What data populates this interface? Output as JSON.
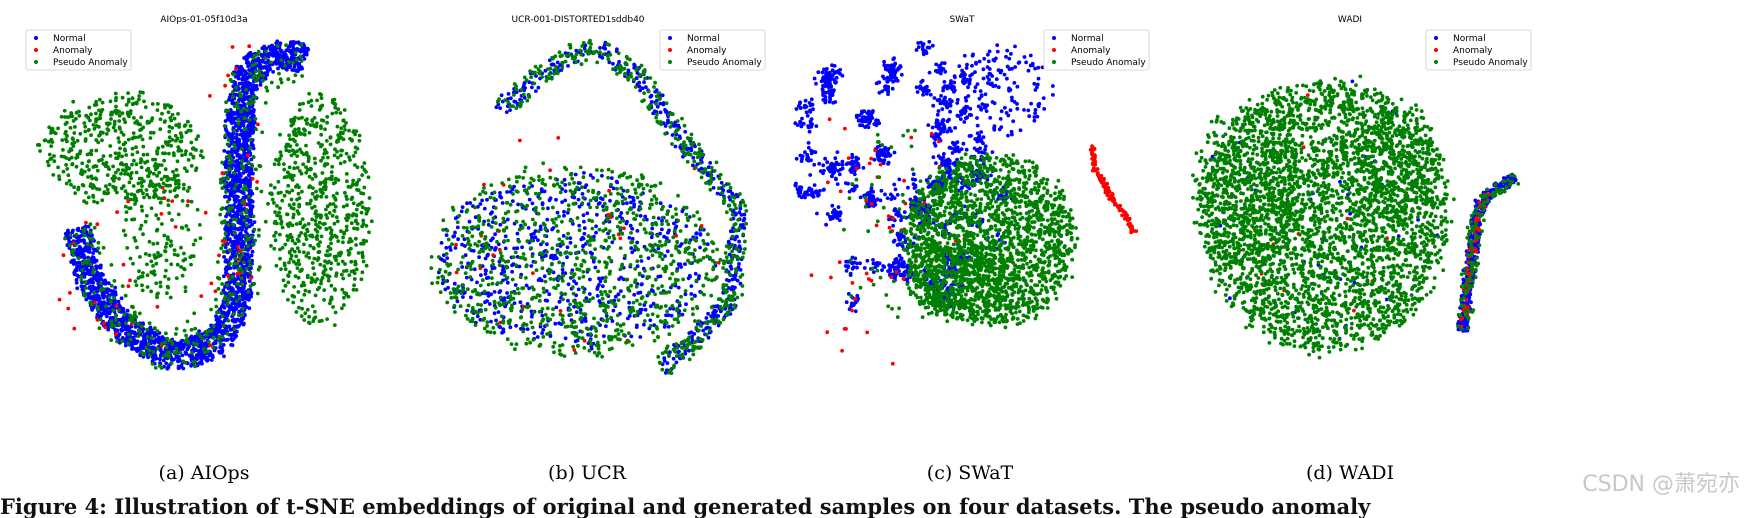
{
  "chart_data": [
    {
      "type": "scatter",
      "title": "AIOps-01-05f10d3a",
      "caption": "(a)  AIOps",
      "legend": {
        "placement": "top-left",
        "entries": [
          "Normal",
          "Anomaly",
          "Pseudo Anomaly"
        ]
      },
      "series": [
        {
          "name": "Normal",
          "color": "#0000ff",
          "regions": [
            {
              "type": "curve",
              "path": [
                [
                  77,
                  227
                ],
                [
                  90,
                  280
                ],
                [
                  120,
                  325
                ],
                [
                  175,
                  358
                ],
                [
                  220,
                  340
                ],
                [
                  238,
                  300
                ],
                [
                  240,
                  240
                ],
                [
                  238,
                  170
                ],
                [
                  240,
                  110
                ],
                [
                  250,
                  70
                ],
                [
                  285,
                  52
                ],
                [
                  305,
                  60
                ]
              ],
              "width": 28,
              "n": 2400
            }
          ]
        },
        {
          "name": "Anomaly",
          "color": "#ff0000",
          "regions": [
            {
              "type": "blob",
              "cx": 150,
              "cy": 270,
              "rx": 100,
              "ry": 90,
              "n": 35
            },
            {
              "type": "blob",
              "cx": 240,
              "cy": 180,
              "rx": 30,
              "ry": 150,
              "n": 20
            }
          ]
        },
        {
          "name": "Pseudo Anomaly",
          "color": "#008000",
          "regions": [
            {
              "type": "blob",
              "cx": 120,
              "cy": 150,
              "rx": 80,
              "ry": 55,
              "n": 500
            },
            {
              "type": "blob",
              "cx": 160,
              "cy": 230,
              "rx": 40,
              "ry": 70,
              "n": 150
            },
            {
              "type": "blob",
              "cx": 320,
              "cy": 210,
              "rx": 50,
              "ry": 115,
              "n": 650
            },
            {
              "type": "curve",
              "path": [
                [
                  77,
                  227
                ],
                [
                  120,
                  325
                ],
                [
                  175,
                  358
                ],
                [
                  238,
                  300
                ],
                [
                  240,
                  170
                ],
                [
                  250,
                  70
                ],
                [
                  305,
                  60
                ]
              ],
              "width": 40,
              "n": 400
            }
          ]
        }
      ]
    },
    {
      "type": "scatter",
      "title": "UCR-001-DISTORTED1sddb40",
      "caption": "(b)  UCR",
      "legend": {
        "placement": "top-right",
        "entries": [
          "Normal",
          "Anomaly",
          "Pseudo Anomaly"
        ]
      },
      "series": [
        {
          "name": "Normal",
          "color": "#0000ff",
          "regions": [
            {
              "type": "blob",
              "cx": 575,
              "cy": 260,
              "rx": 140,
              "ry": 85,
              "n": 650
            },
            {
              "type": "curve",
              "path": [
                [
                  500,
                  110
                ],
                [
                  560,
                  60
                ],
                [
                  600,
                  48
                ],
                [
                  640,
                  80
                ],
                [
                  690,
                  150
                ],
                [
                  740,
                  210
                ],
                [
                  730,
                  300
                ],
                [
                  690,
                  345
                ],
                [
                  660,
                  368
                ]
              ],
              "width": 16,
              "n": 420
            }
          ]
        },
        {
          "name": "Anomaly",
          "color": "#ff0000",
          "regions": [
            {
              "type": "blob",
              "cx": 590,
              "cy": 240,
              "rx": 140,
              "ry": 120,
              "n": 30
            }
          ]
        },
        {
          "name": "Pseudo Anomaly",
          "color": "#008000",
          "regions": [
            {
              "type": "blob",
              "cx": 575,
              "cy": 260,
              "rx": 145,
              "ry": 95,
              "n": 900
            },
            {
              "type": "curve",
              "path": [
                [
                  500,
                  110
                ],
                [
                  560,
                  60
                ],
                [
                  600,
                  48
                ],
                [
                  640,
                  80
                ],
                [
                  690,
                  150
                ],
                [
                  740,
                  210
                ],
                [
                  730,
                  300
                ],
                [
                  690,
                  345
                ],
                [
                  660,
                  368
                ]
              ],
              "width": 22,
              "n": 380
            }
          ]
        }
      ]
    },
    {
      "type": "scatter",
      "title": "SWaT",
      "caption": "(c)  SWaT",
      "legend": {
        "placement": "top-right",
        "entries": [
          "Normal",
          "Anomaly",
          "Pseudo Anomaly"
        ]
      },
      "series": [
        {
          "name": "Normal",
          "color": "#0000ff",
          "regions": [
            {
              "type": "clusters",
              "cx": 900,
              "cy": 180,
              "rx": 110,
              "ry": 140,
              "k": 70,
              "r": 7,
              "n": 1300
            },
            {
              "type": "blob",
              "cx": 1000,
              "cy": 90,
              "rx": 50,
              "ry": 45,
              "n": 150
            }
          ]
        },
        {
          "name": "Anomaly",
          "color": "#ff0000",
          "regions": [
            {
              "type": "curve",
              "path": [
                [
                  1092,
                  148
                ],
                [
                  1096,
                  170
                ],
                [
                  1110,
                  195
                ],
                [
                  1125,
                  215
                ],
                [
                  1133,
                  232
                ]
              ],
              "width": 3,
              "n": 130
            },
            {
              "type": "blob",
              "cx": 890,
              "cy": 230,
              "rx": 90,
              "ry": 140,
              "n": 55
            }
          ]
        },
        {
          "name": "Pseudo Anomaly",
          "color": "#008000",
          "regions": [
            {
              "type": "blob",
              "cx": 990,
              "cy": 240,
              "rx": 85,
              "ry": 85,
              "n": 1800
            },
            {
              "type": "blob",
              "cx": 960,
              "cy": 280,
              "rx": 55,
              "ry": 40,
              "n": 400
            },
            {
              "type": "blob",
              "cx": 900,
              "cy": 230,
              "rx": 60,
              "ry": 110,
              "n": 60
            }
          ]
        }
      ]
    },
    {
      "type": "scatter",
      "title": "WADI",
      "caption": "(d)  WADI",
      "legend": {
        "placement": "top-right",
        "entries": [
          "Normal",
          "Anomaly",
          "Pseudo Anomaly"
        ]
      },
      "series": [
        {
          "name": "Normal",
          "color": "#0000ff",
          "regions": [
            {
              "type": "curve",
              "path": [
                [
                  1462,
                  330
                ],
                [
                  1470,
                  270
                ],
                [
                  1478,
                  210
                ],
                [
                  1492,
                  190
                ],
                [
                  1515,
                  178
                ]
              ],
              "width": 10,
              "n": 380
            },
            {
              "type": "blob",
              "cx": 1320,
              "cy": 210,
              "rx": 120,
              "ry": 140,
              "n": 40
            }
          ]
        },
        {
          "name": "Anomaly",
          "color": "#ff0000",
          "regions": [
            {
              "type": "curve",
              "path": [
                [
                  1462,
                  330
                ],
                [
                  1470,
                  270
                ],
                [
                  1478,
                  210
                ],
                [
                  1492,
                  190
                ]
              ],
              "width": 6,
              "n": 55
            },
            {
              "type": "blob",
              "cx": 1330,
              "cy": 200,
              "rx": 120,
              "ry": 130,
              "n": 14
            }
          ]
        },
        {
          "name": "Pseudo Anomaly",
          "color": "#008000",
          "regions": [
            {
              "type": "blob",
              "cx": 1325,
              "cy": 215,
              "rx": 125,
              "ry": 135,
              "n": 3200
            },
            {
              "type": "blob",
              "cx": 1250,
              "cy": 185,
              "rx": 55,
              "ry": 80,
              "n": 400
            },
            {
              "type": "blob",
              "cx": 1400,
              "cy": 160,
              "rx": 40,
              "ry": 60,
              "n": 250
            },
            {
              "type": "curve",
              "path": [
                [
                  1462,
                  330
                ],
                [
                  1470,
                  270
                ],
                [
                  1478,
                  210
                ],
                [
                  1492,
                  190
                ],
                [
                  1515,
                  178
                ]
              ],
              "width": 14,
              "n": 120
            }
          ]
        }
      ]
    }
  ],
  "bottom_text": "Figure 4: Illustration of t-SNE embeddings of original and generated samples on four datasets. The pseudo anomaly",
  "watermark": "CSDN @萧宛亦"
}
